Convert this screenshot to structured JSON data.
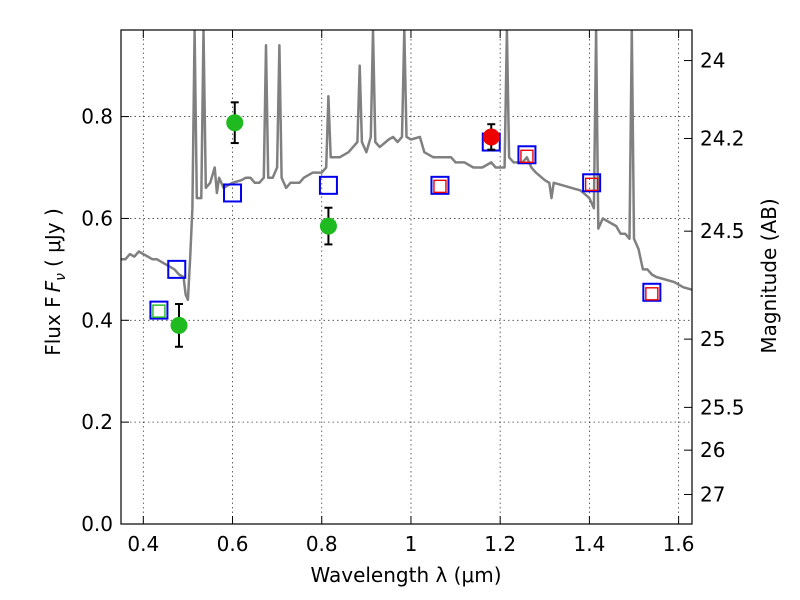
{
  "chart_data": {
    "type": "scatter",
    "title": "",
    "xlabel": "Wavelength  λ (μm)",
    "ylabel": "Flux  F",
    "ylabel_sub": "ν",
    "ylabel_unit": "( μJy )",
    "right_ylabel": "Magnitude (AB)",
    "xlim": [
      0.35,
      1.63
    ],
    "ylim": [
      0.0,
      0.97
    ],
    "grid": true,
    "x_ticks": [
      0.4,
      0.6,
      0.8,
      1.0,
      1.2,
      1.4,
      1.6
    ],
    "x_tick_labels": [
      "0.4",
      "0.6",
      "0.8",
      "1",
      "1.2",
      "1.4",
      "1.6"
    ],
    "y_ticks": [
      0.0,
      0.2,
      0.4,
      0.6,
      0.8
    ],
    "y_tick_labels": [
      "0.0",
      "0.2",
      "0.4",
      "0.6",
      "0.8"
    ],
    "right_ticks": [
      {
        "label": "24",
        "flux": 0.91
      },
      {
        "label": "24.2",
        "flux": 0.757
      },
      {
        "label": "24.5",
        "flux": 0.575
      },
      {
        "label": "25",
        "flux": 0.363
      },
      {
        "label": "25.5",
        "flux": 0.229
      },
      {
        "label": "26",
        "flux": 0.145
      },
      {
        "label": "27",
        "flux": 0.058
      }
    ],
    "series": [
      {
        "name": "model spectrum",
        "kind": "line",
        "color": "#808080",
        "points": [
          [
            0.35,
            0.52
          ],
          [
            0.36,
            0.52
          ],
          [
            0.37,
            0.53
          ],
          [
            0.38,
            0.525
          ],
          [
            0.39,
            0.535
          ],
          [
            0.4,
            0.53
          ],
          [
            0.41,
            0.525
          ],
          [
            0.42,
            0.52
          ],
          [
            0.43,
            0.52
          ],
          [
            0.44,
            0.515
          ],
          [
            0.45,
            0.51
          ],
          [
            0.46,
            0.505
          ],
          [
            0.47,
            0.5
          ],
          [
            0.48,
            0.49
          ],
          [
            0.49,
            0.485
          ],
          [
            0.495,
            0.45
          ],
          [
            0.5,
            0.44
          ],
          [
            0.505,
            0.52
          ],
          [
            0.51,
            0.62
          ],
          [
            0.515,
            0.97
          ],
          [
            0.52,
            0.64
          ],
          [
            0.53,
            0.64
          ],
          [
            0.535,
            0.97
          ],
          [
            0.54,
            0.66
          ],
          [
            0.55,
            0.67
          ],
          [
            0.56,
            0.7
          ],
          [
            0.565,
            0.65
          ],
          [
            0.57,
            0.68
          ],
          [
            0.58,
            0.66
          ],
          [
            0.59,
            0.665
          ],
          [
            0.6,
            0.67
          ],
          [
            0.62,
            0.675
          ],
          [
            0.63,
            0.68
          ],
          [
            0.64,
            0.68
          ],
          [
            0.65,
            0.67
          ],
          [
            0.66,
            0.67
          ],
          [
            0.67,
            0.68
          ],
          [
            0.675,
            0.94
          ],
          [
            0.68,
            0.68
          ],
          [
            0.69,
            0.68
          ],
          [
            0.7,
            0.7
          ],
          [
            0.705,
            0.94
          ],
          [
            0.71,
            0.68
          ],
          [
            0.72,
            0.66
          ],
          [
            0.73,
            0.67
          ],
          [
            0.75,
            0.67
          ],
          [
            0.76,
            0.68
          ],
          [
            0.78,
            0.69
          ],
          [
            0.8,
            0.69
          ],
          [
            0.81,
            0.7
          ],
          [
            0.815,
            0.84
          ],
          [
            0.82,
            0.72
          ],
          [
            0.84,
            0.72
          ],
          [
            0.86,
            0.73
          ],
          [
            0.87,
            0.74
          ],
          [
            0.88,
            0.75
          ],
          [
            0.885,
            0.9
          ],
          [
            0.89,
            0.75
          ],
          [
            0.9,
            0.73
          ],
          [
            0.91,
            0.76
          ],
          [
            0.915,
            0.97
          ],
          [
            0.92,
            0.75
          ],
          [
            0.93,
            0.74
          ],
          [
            0.95,
            0.755
          ],
          [
            0.96,
            0.76
          ],
          [
            0.97,
            0.75
          ],
          [
            0.98,
            0.76
          ],
          [
            0.985,
            0.97
          ],
          [
            0.99,
            0.76
          ],
          [
            1.0,
            0.755
          ],
          [
            1.02,
            0.76
          ],
          [
            1.03,
            0.73
          ],
          [
            1.05,
            0.72
          ],
          [
            1.07,
            0.72
          ],
          [
            1.09,
            0.72
          ],
          [
            1.1,
            0.71
          ],
          [
            1.12,
            0.71
          ],
          [
            1.14,
            0.7
          ],
          [
            1.16,
            0.7
          ],
          [
            1.18,
            0.71
          ],
          [
            1.19,
            0.7
          ],
          [
            1.2,
            0.7
          ],
          [
            1.21,
            0.7
          ],
          [
            1.215,
            0.97
          ],
          [
            1.22,
            0.72
          ],
          [
            1.23,
            0.71
          ],
          [
            1.25,
            0.71
          ],
          [
            1.26,
            0.72
          ],
          [
            1.27,
            0.7
          ],
          [
            1.28,
            0.69
          ],
          [
            1.3,
            0.675
          ],
          [
            1.31,
            0.67
          ],
          [
            1.315,
            0.64
          ],
          [
            1.32,
            0.67
          ],
          [
            1.34,
            0.665
          ],
          [
            1.36,
            0.66
          ],
          [
            1.38,
            0.655
          ],
          [
            1.4,
            0.64
          ],
          [
            1.41,
            0.62
          ],
          [
            1.415,
            0.97
          ],
          [
            1.42,
            0.58
          ],
          [
            1.43,
            0.6
          ],
          [
            1.44,
            0.595
          ],
          [
            1.46,
            0.585
          ],
          [
            1.47,
            0.57
          ],
          [
            1.48,
            0.57
          ],
          [
            1.49,
            0.56
          ],
          [
            1.495,
            0.97
          ],
          [
            1.5,
            0.56
          ],
          [
            1.51,
            0.54
          ],
          [
            1.52,
            0.5
          ],
          [
            1.53,
            0.5
          ],
          [
            1.54,
            0.49
          ],
          [
            1.55,
            0.485
          ],
          [
            1.57,
            0.48
          ],
          [
            1.59,
            0.475
          ],
          [
            1.6,
            0.47
          ],
          [
            1.61,
            0.465
          ],
          [
            1.63,
            0.46
          ]
        ]
      },
      {
        "name": "model photometry (blue open squares)",
        "kind": "marker",
        "marker": "square-open",
        "color": "#0000ee",
        "points": [
          [
            0.435,
            0.42
          ],
          [
            0.475,
            0.5
          ],
          [
            0.6,
            0.65
          ],
          [
            0.815,
            0.665
          ],
          [
            1.065,
            0.665
          ],
          [
            1.18,
            0.75
          ],
          [
            1.26,
            0.725
          ],
          [
            1.405,
            0.67
          ],
          [
            1.54,
            0.455
          ]
        ]
      },
      {
        "name": "green photometry",
        "kind": "marker",
        "marker": "circle",
        "color": "#1fba1f",
        "points": [
          [
            0.48,
            0.39,
            0.042
          ],
          [
            0.605,
            0.788,
            0.04
          ],
          [
            0.815,
            0.585,
            0.036
          ]
        ]
      },
      {
        "name": "red photometry",
        "kind": "marker",
        "marker": "circle",
        "color": "#ee0000",
        "points": [
          [
            1.18,
            0.76,
            0.025
          ]
        ]
      },
      {
        "name": "red open squares",
        "kind": "marker",
        "marker": "square-open-small",
        "color": "#ee0000",
        "points": [
          [
            1.065,
            0.663
          ],
          [
            1.26,
            0.722
          ],
          [
            1.405,
            0.667
          ],
          [
            1.54,
            0.452
          ]
        ]
      },
      {
        "name": "green open square",
        "kind": "marker",
        "marker": "square-open-small",
        "color": "#1fba1f",
        "points": [
          [
            0.435,
            0.418
          ]
        ]
      }
    ]
  }
}
